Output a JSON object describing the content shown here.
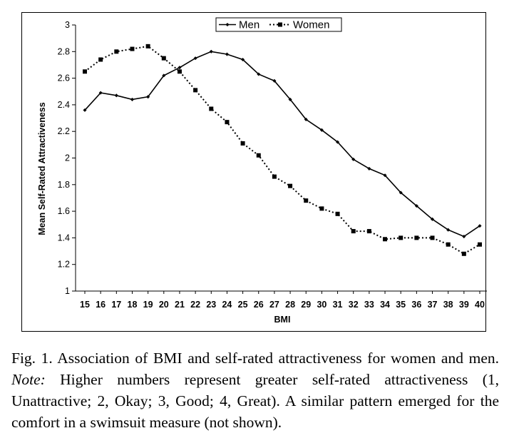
{
  "chart_data": {
    "type": "line",
    "title": "",
    "xlabel": "BMI",
    "ylabel": "Mean Self-Rated Attractiveness",
    "categories": [
      "15",
      "16",
      "17",
      "18",
      "19",
      "20",
      "21",
      "22",
      "23",
      "24",
      "25",
      "26",
      "27",
      "28",
      "29",
      "30",
      "31",
      "32",
      "33",
      "34",
      "35",
      "36",
      "37",
      "38",
      "39",
      "40"
    ],
    "ylim": [
      1,
      3
    ],
    "yticks": [
      "1",
      "1.2",
      "1.4",
      "1.6",
      "1.8",
      "2",
      "2.2",
      "2.4",
      "2.6",
      "2.8",
      "3"
    ],
    "grid": false,
    "legend_position": "top-right",
    "series": [
      {
        "name": "Men",
        "line_style": "solid",
        "marker": "small-diamond",
        "color": "#000000",
        "values": [
          2.36,
          2.49,
          2.47,
          2.44,
          2.46,
          2.62,
          2.68,
          2.75,
          2.8,
          2.78,
          2.74,
          2.63,
          2.58,
          2.44,
          2.29,
          2.21,
          2.12,
          1.99,
          1.92,
          1.87,
          1.74,
          1.64,
          1.54,
          1.46,
          1.41,
          1.49
        ]
      },
      {
        "name": "Women",
        "line_style": "dotted",
        "marker": "square",
        "color": "#000000",
        "values": [
          2.65,
          2.74,
          2.8,
          2.82,
          2.84,
          2.75,
          2.65,
          2.51,
          2.37,
          2.27,
          2.11,
          2.02,
          1.86,
          1.79,
          1.68,
          1.62,
          1.58,
          1.45,
          1.45,
          1.39,
          1.4,
          1.4,
          1.4,
          1.35,
          1.28,
          1.35
        ]
      }
    ]
  },
  "caption": {
    "fig_label": "Fig. 1.",
    "text_1": "Association of BMI and self-rated attractiveness for women and men.",
    "note_label": "Note:",
    "text_2": "Higher numbers represent greater self-rated attractiveness (1, Unattractive; 2, Okay; 3, Good; 4, Great). A similar pattern emerged for the comfort in a swimsuit measure (not shown)."
  }
}
